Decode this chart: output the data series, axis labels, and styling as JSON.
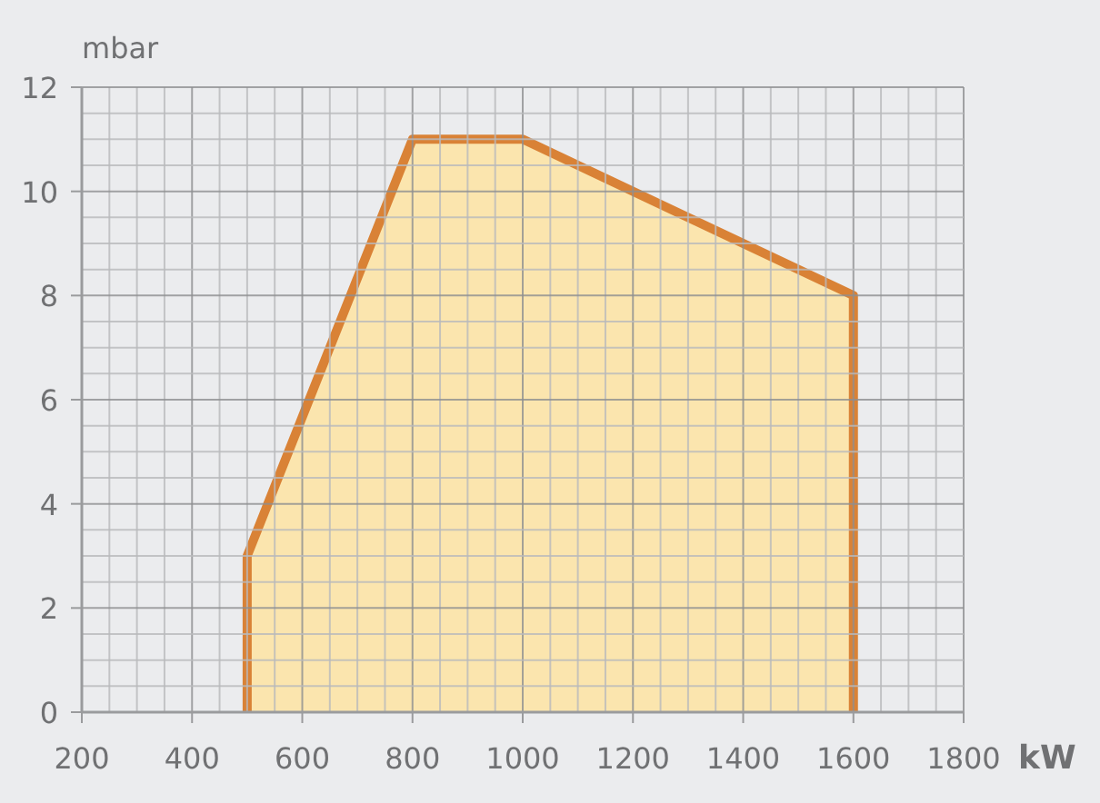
{
  "chart_data": {
    "type": "area",
    "xlabel": "kW",
    "ylabel": "mbar",
    "grid": true,
    "x": [
      500,
      500,
      800,
      1000,
      1600,
      1600
    ],
    "series": [
      {
        "color": "#d98236",
        "values": [
          0,
          3,
          11,
          11,
          8,
          0
        ]
      }
    ],
    "xlim": [
      200,
      1800
    ],
    "ylim": [
      0,
      12
    ],
    "xticks": [
      200,
      {
        "value": 250,
        "label": null
      },
      400,
      {
        "value": 300,
        "label": null
      },
      {
        "value": 350,
        "label": null
      },
      {
        "value": 450,
        "label": null
      },
      600,
      {
        "value": 500,
        "label": null
      },
      {
        "value": 550,
        "label": null
      },
      {
        "value": 650,
        "label": null
      },
      800,
      {
        "value": 700,
        "label": null
      },
      {
        "value": 750,
        "label": null
      },
      {
        "value": 850,
        "label": null
      },
      1000,
      {
        "value": 900,
        "label": null
      },
      {
        "value": 950,
        "label": null
      },
      {
        "value": 1050,
        "label": null
      },
      1200,
      {
        "value": 1100,
        "label": null
      },
      {
        "value": 1150,
        "label": null
      },
      {
        "value": 1250,
        "label": null
      },
      1400,
      {
        "value": 1300,
        "label": null
      },
      {
        "value": 1350,
        "label": null
      },
      {
        "value": 1450,
        "label": null
      },
      1600,
      {
        "value": 1500,
        "label": null
      },
      {
        "value": 1550,
        "label": null
      },
      {
        "value": 1650,
        "label": null
      },
      1800,
      {
        "value": 1700,
        "label": null
      },
      {
        "value": 1750,
        "label": null
      }
    ],
    "yticks": [
      0,
      {
        "value": 0.5,
        "label": null
      },
      {
        "value": 1,
        "label": null
      },
      {
        "value": 1.5,
        "label": null
      },
      2,
      {
        "value": 2.5,
        "label": null
      },
      {
        "value": 3,
        "label": null
      },
      {
        "value": 3.5,
        "label": null
      },
      4,
      {
        "value": 4.5,
        "label": null
      },
      {
        "value": 5,
        "label": null
      },
      {
        "value": 5.5,
        "label": null
      },
      6,
      {
        "value": 6.5,
        "label": null
      },
      {
        "value": 7,
        "label": null
      },
      {
        "value": 7.5,
        "label": null
      },
      8,
      {
        "value": 8.5,
        "label": null
      },
      {
        "value": 9,
        "label": null
      },
      {
        "value": 9.5,
        "label": null
      },
      10,
      {
        "value": 10.5,
        "label": null
      },
      {
        "value": 11,
        "label": null
      },
      {
        "value": 11.5,
        "label": null
      },
      12
    ]
  }
}
